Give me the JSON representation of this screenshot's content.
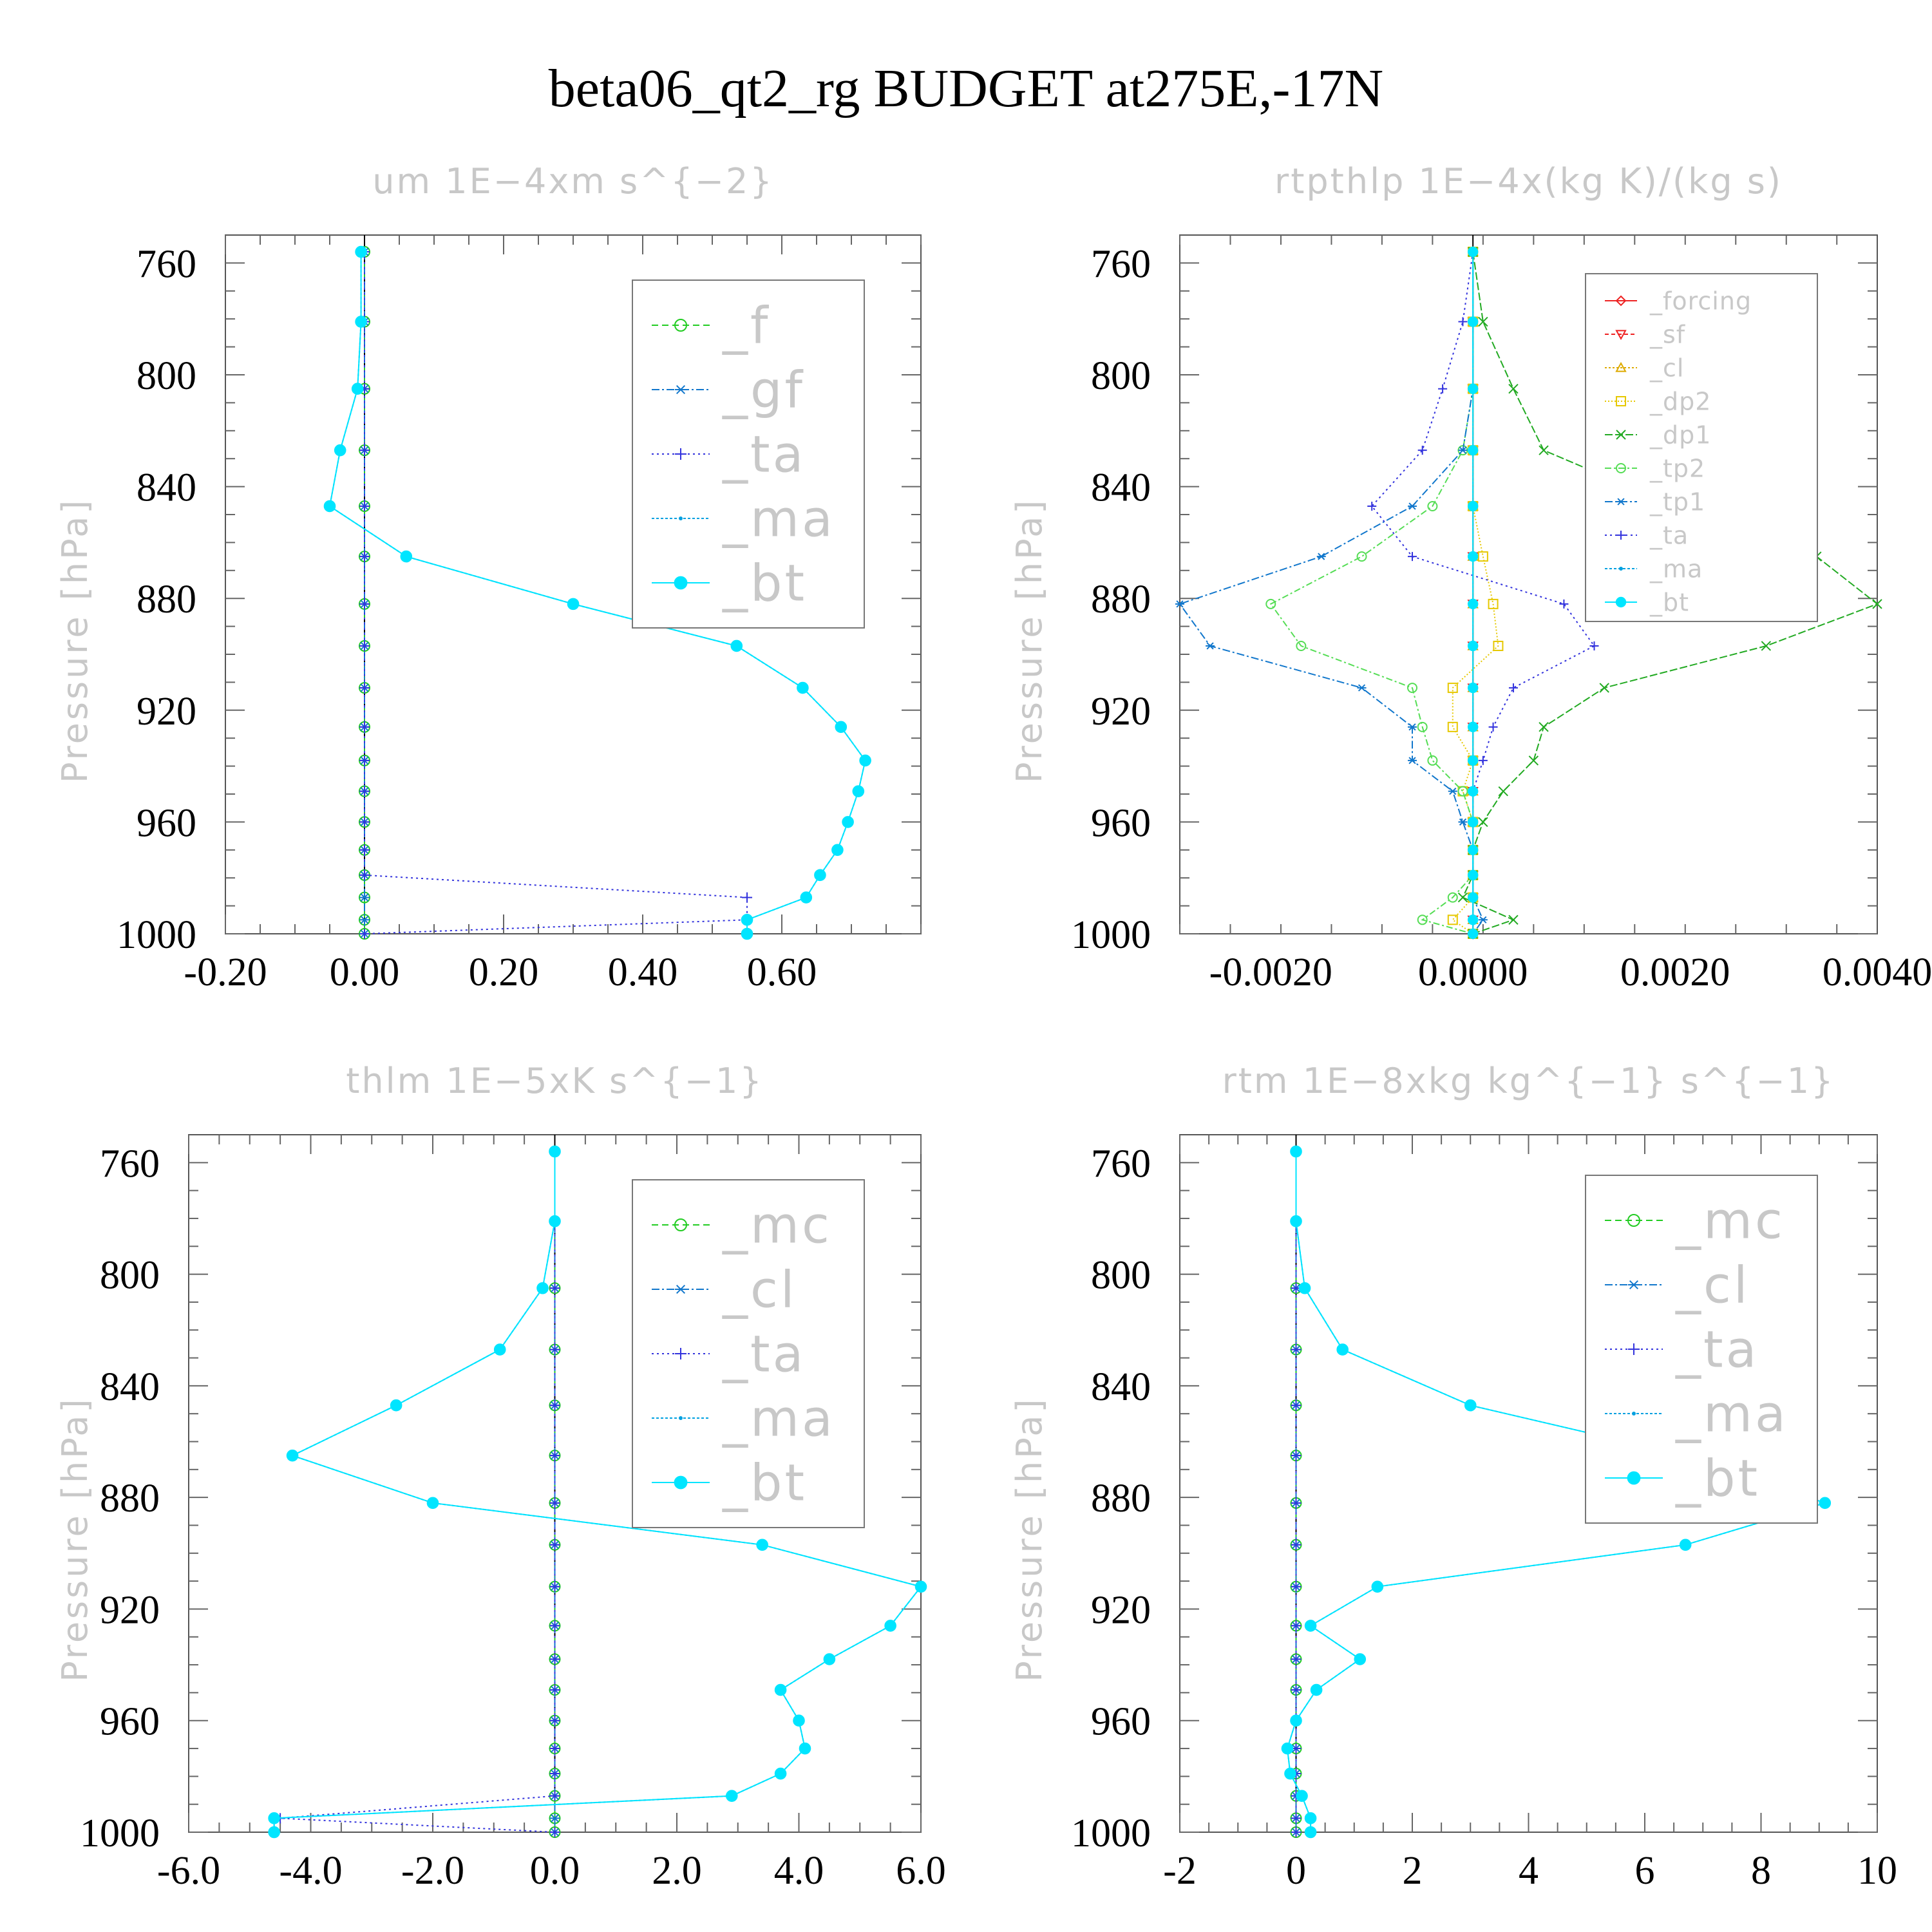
{
  "figure_title": "beta06_qt2_rg  BUDGET at275E,-17N",
  "chart_data": [
    {
      "type": "line",
      "title": "um   1E−4xm s^{−2}",
      "ylabel": "Pressure [hPa]",
      "xlabel": "",
      "xlim": [
        -0.2,
        0.8
      ],
      "ylim": [
        1000,
        750
      ],
      "xticks": [
        -0.2,
        0,
        0.2,
        0.4,
        0.6
      ],
      "xtick_labels": [
        "-0.20",
        "0.00",
        "0.20",
        "0.40",
        "0.60"
      ],
      "yticks": [
        760,
        800,
        840,
        880,
        920,
        960,
        1000
      ],
      "ytick_labels": [
        "760",
        "800",
        "840",
        "880",
        "920",
        "960",
        "1000"
      ],
      "legend_position": "top-right",
      "pressure": [
        756,
        781,
        805,
        827,
        847,
        865,
        882,
        897,
        912,
        926,
        938,
        949,
        960,
        970,
        979,
        987,
        995,
        1000
      ],
      "series": [
        {
          "name": "_f",
          "color": "#22cc22",
          "marker": "circle",
          "dash": "10,6",
          "values": [
            0,
            0,
            0,
            0,
            0,
            0,
            0,
            0,
            0,
            0,
            0,
            0,
            0,
            0,
            0,
            0,
            0,
            0
          ]
        },
        {
          "name": "_gf",
          "color": "#1177cc",
          "marker": "asterisk",
          "dash": "12,4,3,4",
          "values": [
            0,
            0,
            0,
            0,
            0,
            0,
            0,
            0,
            0,
            0,
            0,
            0,
            0,
            0,
            0,
            0,
            0,
            0
          ]
        },
        {
          "name": "_ta",
          "color": "#3333dd",
          "marker": "plus",
          "dash": "3,5",
          "values": [
            0,
            0,
            0,
            0,
            0,
            0,
            0,
            0,
            0,
            0,
            0,
            0,
            0,
            0,
            0,
            0.55,
            0.55,
            0
          ]
        },
        {
          "name": "_ma",
          "color": "#00a0e0",
          "marker": "dot",
          "dash": "4,3",
          "values": [
            -0.005,
            -0.005,
            -0.01,
            -0.035,
            -0.05,
            0.06,
            0.3,
            0.535,
            0.63,
            0.685,
            0.72,
            0.71,
            0.695,
            0.68,
            0.655,
            0.635,
            0.55,
            0.55
          ]
        },
        {
          "name": "_bt",
          "color": "#00e5ff",
          "marker": "filled-circle",
          "dash": "",
          "values": [
            -0.005,
            -0.005,
            -0.01,
            -0.035,
            -0.05,
            0.06,
            0.3,
            0.535,
            0.63,
            0.685,
            0.72,
            0.71,
            0.695,
            0.68,
            0.655,
            0.635,
            0.55,
            0.55
          ]
        }
      ]
    },
    {
      "type": "line",
      "title": "rtpthlp   1E−4x(kg K)/(kg s)",
      "ylabel": "Pressure [hPa]",
      "xlabel": "",
      "xlim": [
        -0.0029,
        0.004
      ],
      "ylim": [
        1000,
        750
      ],
      "xticks": [
        -0.002,
        0,
        0.002,
        0.004
      ],
      "xtick_labels": [
        "-0.0020",
        "0.0000",
        "0.0020",
        "0.0040"
      ],
      "yticks": [
        760,
        800,
        840,
        880,
        920,
        960,
        1000
      ],
      "ytick_labels": [
        "760",
        "800",
        "840",
        "880",
        "920",
        "960",
        "1000"
      ],
      "legend_position": "top-right",
      "pressure": [
        756,
        781,
        805,
        827,
        847,
        865,
        882,
        897,
        912,
        926,
        938,
        949,
        960,
        970,
        979,
        987,
        995,
        1000
      ],
      "series": [
        {
          "name": "_forcing",
          "color": "#ee2222",
          "marker": "diamond",
          "dash": "",
          "values": [
            0,
            0,
            0,
            0,
            0,
            0,
            0,
            0,
            0,
            0,
            0,
            0,
            0,
            0,
            0,
            0,
            0,
            0
          ]
        },
        {
          "name": "_sf",
          "color": "#ee2222",
          "marker": "triangle-down",
          "dash": "6,4",
          "values": [
            0,
            0,
            0,
            0,
            0,
            0,
            0,
            0,
            0,
            0,
            0,
            0,
            0,
            0,
            0,
            0,
            0,
            0
          ]
        },
        {
          "name": "_cl",
          "color": "#ddaa00",
          "marker": "triangle",
          "dash": "3,3",
          "values": [
            0,
            0,
            0,
            0,
            0,
            0,
            0,
            0,
            0,
            0,
            0,
            0,
            0,
            0,
            0,
            0,
            0,
            0
          ]
        },
        {
          "name": "_dp2",
          "color": "#e6c800",
          "marker": "square",
          "dash": "2,3",
          "values": [
            0,
            0,
            0,
            0,
            0,
            0.0001,
            0.0002,
            0.00025,
            -0.0002,
            -0.0002,
            0,
            -0.0001,
            0,
            0,
            0,
            0,
            -0.0002,
            0
          ]
        },
        {
          "name": "_dp1",
          "color": "#22aa22",
          "marker": "x",
          "dash": "12,4",
          "values": [
            0,
            0.0001,
            0.0004,
            0.0007,
            0.002,
            0.0034,
            0.004,
            0.0029,
            0.0013,
            0.0007,
            0.0006,
            0.0003,
            0.0001,
            0,
            0,
            -0.0001,
            0.0004,
            0
          ]
        },
        {
          "name": "_tp2",
          "color": "#55dd55",
          "marker": "circle",
          "dash": "10,4,3,4",
          "values": [
            0,
            0,
            0,
            -0.0001,
            -0.0004,
            -0.0011,
            -0.002,
            -0.0017,
            -0.0006,
            -0.0005,
            -0.0004,
            -0.0001,
            0,
            0,
            0,
            -0.0002,
            -0.0005,
            0
          ]
        },
        {
          "name": "_tp1",
          "color": "#1177cc",
          "marker": "asterisk",
          "dash": "12,4,3,4",
          "values": [
            0,
            0,
            0,
            -0.0001,
            -0.0006,
            -0.0015,
            -0.0029,
            -0.0026,
            -0.0011,
            -0.0006,
            -0.0006,
            -0.0002,
            -0.0001,
            0,
            0,
            0,
            0.0001,
            0
          ]
        },
        {
          "name": "_ta",
          "color": "#3333dd",
          "marker": "plus",
          "dash": "3,5",
          "values": [
            0,
            -0.0001,
            -0.0003,
            -0.0005,
            -0.001,
            -0.0006,
            0.0009,
            0.0012,
            0.0004,
            0.0002,
            0.0001,
            0,
            0,
            0,
            0,
            0,
            0,
            0
          ]
        },
        {
          "name": "_ma",
          "color": "#00a0e0",
          "marker": "dot",
          "dash": "4,3",
          "values": [
            0,
            0,
            0,
            0,
            0,
            0,
            0,
            0,
            0,
            0,
            0,
            0,
            0,
            0,
            0,
            0,
            0,
            0
          ]
        },
        {
          "name": "_bt",
          "color": "#00e5ff",
          "marker": "filled-circle",
          "dash": "",
          "values": [
            0,
            0,
            0,
            0,
            0,
            0,
            0,
            0,
            0,
            0,
            0,
            0,
            0,
            0,
            0,
            0,
            0,
            0
          ]
        }
      ]
    },
    {
      "type": "line",
      "title": "thlm   1E−5xK s^{−1}",
      "ylabel": "Pressure [hPa]",
      "xlabel": "",
      "xlim": [
        -6,
        6
      ],
      "ylim": [
        1000,
        750
      ],
      "xticks": [
        -6,
        -4,
        -2,
        0,
        2,
        4,
        6
      ],
      "xtick_labels": [
        "-6.0",
        "-4.0",
        "-2.0",
        "0.0",
        "2.0",
        "4.0",
        "6.0"
      ],
      "yticks": [
        760,
        800,
        840,
        880,
        920,
        960,
        1000
      ],
      "ytick_labels": [
        "760",
        "800",
        "840",
        "880",
        "920",
        "960",
        "1000"
      ],
      "legend_position": "top-right",
      "pressure": [
        756,
        781,
        805,
        827,
        847,
        865,
        882,
        897,
        912,
        926,
        938,
        949,
        960,
        970,
        979,
        987,
        995,
        1000
      ],
      "series": [
        {
          "name": "_mc",
          "color": "#22cc22",
          "marker": "circle",
          "dash": "10,6",
          "values": [
            0,
            0,
            0,
            0,
            0,
            0,
            0,
            0,
            0,
            0,
            0,
            0,
            0,
            0,
            0,
            0,
            0,
            0
          ]
        },
        {
          "name": "_cl",
          "color": "#1177cc",
          "marker": "asterisk",
          "dash": "12,4,3,4",
          "values": [
            0,
            0,
            0,
            0,
            0,
            0,
            0,
            0,
            0,
            0,
            0,
            0,
            0,
            0,
            0,
            0,
            0,
            0
          ]
        },
        {
          "name": "_ta",
          "color": "#3333dd",
          "marker": "plus",
          "dash": "3,5",
          "values": [
            0,
            0,
            0,
            0,
            0,
            0,
            0,
            0,
            0,
            0,
            0,
            0,
            0,
            0,
            0,
            0,
            -4.5,
            0
          ]
        },
        {
          "name": "_ma",
          "color": "#00a0e0",
          "marker": "dot",
          "dash": "4,3",
          "values": [
            0,
            0,
            -0.2,
            -0.9,
            -2.6,
            -4.3,
            -2.0,
            3.4,
            6.0,
            5.5,
            4.5,
            3.7,
            4.0,
            4.1,
            3.7,
            2.9,
            -4.6,
            -4.6
          ]
        },
        {
          "name": "_bt",
          "color": "#00e5ff",
          "marker": "filled-circle",
          "dash": "",
          "values": [
            0,
            0,
            -0.2,
            -0.9,
            -2.6,
            -4.3,
            -2.0,
            3.4,
            6.0,
            5.5,
            4.5,
            3.7,
            4.0,
            4.1,
            3.7,
            2.9,
            -4.6,
            -4.6
          ]
        }
      ]
    },
    {
      "type": "line",
      "title": "rtm   1E−8xkg kg^{−1} s^{−1}",
      "ylabel": "Pressure [hPa]",
      "xlabel": "",
      "xlim": [
        -2,
        10
      ],
      "ylim": [
        1000,
        750
      ],
      "xticks": [
        -2,
        0,
        2,
        4,
        6,
        8,
        10
      ],
      "xtick_labels": [
        "-2",
        "0",
        "2",
        "4",
        "6",
        "8",
        "10"
      ],
      "yticks": [
        760,
        800,
        840,
        880,
        920,
        960,
        1000
      ],
      "ytick_labels": [
        "760",
        "800",
        "840",
        "880",
        "920",
        "960",
        "1000"
      ],
      "legend_position": "top-right",
      "pressure": [
        756,
        781,
        805,
        827,
        847,
        865,
        882,
        897,
        912,
        926,
        938,
        949,
        960,
        970,
        979,
        987,
        995,
        1000
      ],
      "series": [
        {
          "name": "_mc",
          "color": "#22cc22",
          "marker": "circle",
          "dash": "10,6",
          "values": [
            0,
            0,
            0,
            0,
            0,
            0,
            0,
            0,
            0,
            0,
            0,
            0,
            0,
            0,
            0,
            0,
            0,
            0
          ]
        },
        {
          "name": "_cl",
          "color": "#1177cc",
          "marker": "asterisk",
          "dash": "12,4,3,4",
          "values": [
            0,
            0,
            0,
            0,
            0,
            0,
            0,
            0,
            0,
            0,
            0,
            0,
            0,
            0,
            0,
            0,
            0,
            0
          ]
        },
        {
          "name": "_ta",
          "color": "#3333dd",
          "marker": "plus",
          "dash": "3,5",
          "values": [
            0,
            0,
            0,
            0,
            0,
            0,
            0,
            0,
            0,
            0,
            0,
            0,
            0,
            0,
            0,
            0,
            0,
            0
          ]
        },
        {
          "name": "_ma",
          "color": "#00a0e0",
          "marker": "dot",
          "dash": "4,3",
          "values": [
            0,
            0,
            0.15,
            0.8,
            3.0,
            6.7,
            9.1,
            6.7,
            1.4,
            0.25,
            1.1,
            0.35,
            0,
            -0.15,
            -0.1,
            0.1,
            0.25,
            0.25
          ]
        },
        {
          "name": "_bt",
          "color": "#00e5ff",
          "marker": "filled-circle",
          "dash": "",
          "values": [
            0,
            0,
            0.15,
            0.8,
            3.0,
            6.7,
            9.1,
            6.7,
            1.4,
            0.25,
            1.1,
            0.35,
            0,
            -0.15,
            -0.1,
            0.1,
            0.25,
            0.25
          ]
        }
      ]
    }
  ]
}
